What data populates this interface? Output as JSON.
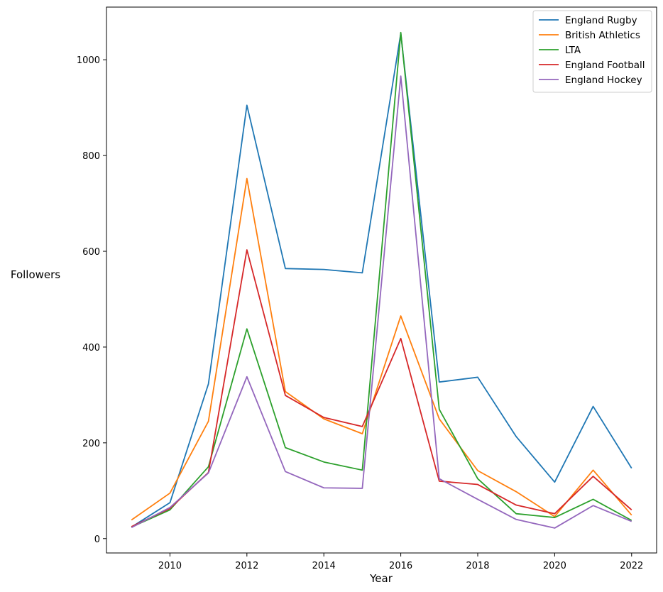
{
  "chart_data": {
    "type": "line",
    "title": "",
    "xlabel": "Year",
    "ylabel": "Followers",
    "x": [
      2009,
      2010,
      2011,
      2012,
      2013,
      2014,
      2015,
      2016,
      2017,
      2018,
      2019,
      2020,
      2021,
      2022
    ],
    "x_ticks": [
      2010,
      2012,
      2014,
      2016,
      2018,
      2020,
      2022
    ],
    "y_ticks": [
      0,
      200,
      400,
      600,
      800,
      1000
    ],
    "xlim": [
      2008.35,
      2022.65
    ],
    "ylim": [
      -30,
      1110
    ],
    "grid": false,
    "legend_position": "top-right",
    "series": [
      {
        "name": "England Rugby",
        "color": "#1f77b4",
        "values": [
          24,
          75,
          323,
          905,
          564,
          562,
          555,
          1055,
          327,
          337,
          213,
          118,
          276,
          147
        ]
      },
      {
        "name": "British Athletics",
        "color": "#ff7f0e",
        "values": [
          39,
          95,
          245,
          752,
          307,
          250,
          219,
          465,
          250,
          142,
          98,
          46,
          143,
          49
        ]
      },
      {
        "name": "LTA",
        "color": "#2ca02c",
        "values": [
          24,
          60,
          150,
          438,
          190,
          160,
          143,
          1057,
          270,
          125,
          52,
          44,
          82,
          38
        ]
      },
      {
        "name": "England Football",
        "color": "#d62728",
        "values": [
          25,
          63,
          138,
          603,
          299,
          253,
          234,
          418,
          120,
          113,
          70,
          52,
          130,
          60
        ]
      },
      {
        "name": "England Hockey",
        "color": "#9467bd",
        "values": [
          23,
          65,
          137,
          338,
          140,
          106,
          105,
          966,
          125,
          82,
          40,
          22,
          69,
          36
        ]
      }
    ]
  }
}
